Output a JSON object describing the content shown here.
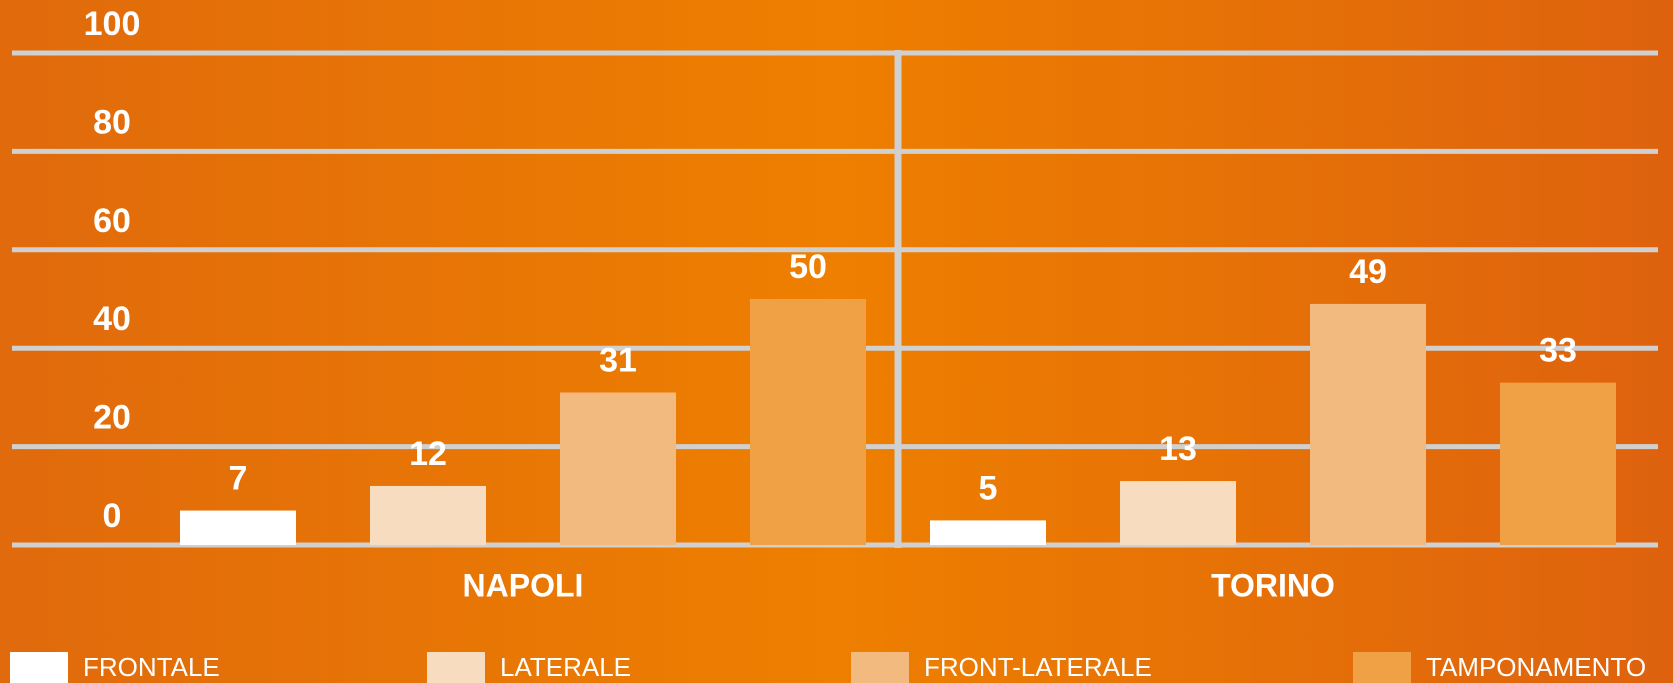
{
  "chart_data": {
    "type": "bar",
    "categories": [
      "NAPOLI",
      "TORINO"
    ],
    "series": [
      {
        "name": "FRONTALE",
        "color": "#ffffff",
        "values": [
          7,
          5
        ]
      },
      {
        "name": "LATERALE",
        "color": "#f8dcc0",
        "values": [
          12,
          13
        ]
      },
      {
        "name": "FRONT-LATERALE",
        "color": "#f2ba7e",
        "values": [
          31,
          49
        ]
      },
      {
        "name": "TAMPONAMENTO",
        "color": "#f0a045",
        "values": [
          50,
          33
        ]
      }
    ],
    "ylim": [
      0,
      100
    ],
    "yticks": [
      0,
      20,
      40,
      60,
      80,
      100
    ],
    "grid": true
  }
}
